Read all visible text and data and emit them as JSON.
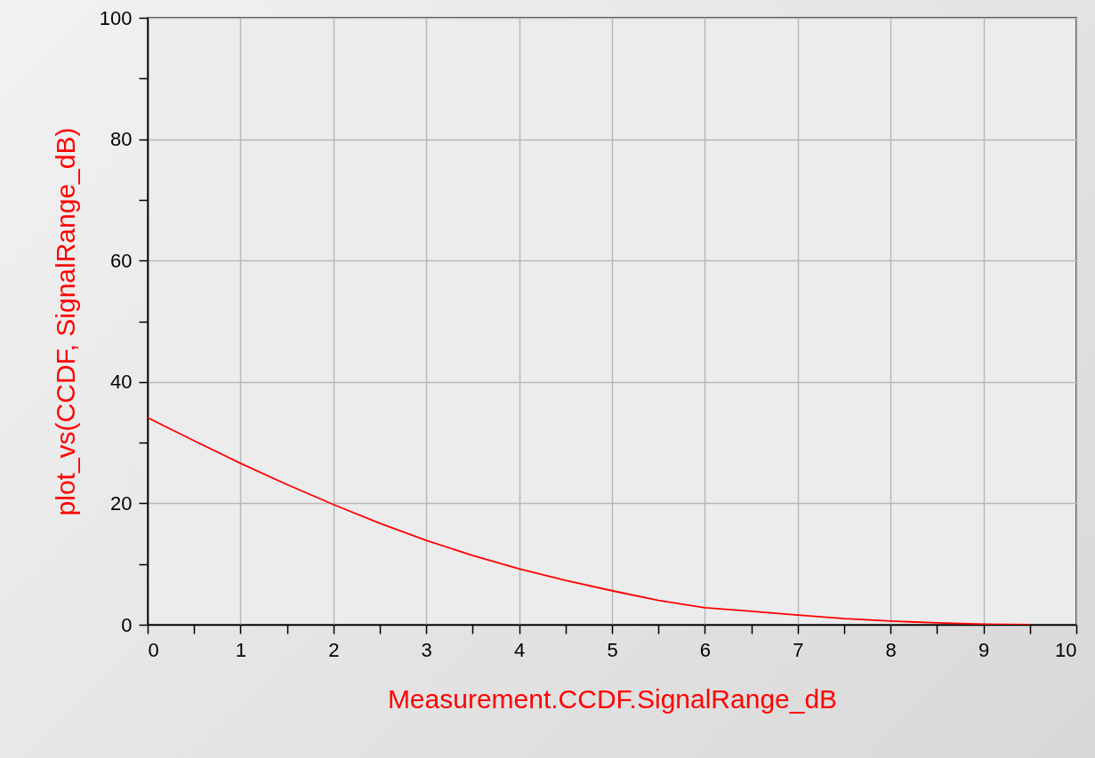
{
  "chart_data": {
    "type": "line",
    "xlabel": "Measurement.CCDF.SignalRange_dB",
    "ylabel": "plot_vs(CCDF, SignalRange_dB)",
    "x": [
      0,
      0.5,
      1,
      1.5,
      2,
      2.5,
      3,
      3.5,
      4,
      4.5,
      5,
      5.5,
      6,
      6.5,
      7,
      7.5,
      8,
      8.5,
      9,
      9.5
    ],
    "series": [
      {
        "color": "#ff0000",
        "values": [
          34.1,
          30.3,
          26.6,
          23.1,
          19.8,
          16.7,
          13.9,
          11.4,
          9.2,
          7.3,
          5.6,
          4.0,
          2.8,
          2.2,
          1.6,
          1.0,
          0.6,
          0.3,
          0.1,
          0
        ]
      }
    ],
    "xlim": [
      0,
      10
    ],
    "xticks": [
      0,
      {
        "value": 0.5,
        "label": null
      },
      1,
      {
        "value": 1.5,
        "label": null
      },
      2,
      {
        "value": 2.5,
        "label": null
      },
      3,
      {
        "value": 3.5,
        "label": null
      },
      4,
      {
        "value": 4.5,
        "label": null
      },
      5,
      {
        "value": 5.5,
        "label": null
      },
      6,
      {
        "value": 6.5,
        "label": null
      },
      7,
      {
        "value": 7.5,
        "label": null
      },
      8,
      {
        "value": 8.5,
        "label": null
      },
      9,
      {
        "value": 9.5,
        "label": null
      },
      10
    ],
    "ylim": [
      0,
      100
    ],
    "yticks": [
      0,
      {
        "value": 10,
        "label": null
      },
      20,
      {
        "value": 30,
        "label": null
      },
      40,
      {
        "value": 50,
        "label": null
      },
      60,
      {
        "value": 70,
        "label": null
      },
      80,
      {
        "value": 90,
        "label": null
      },
      100
    ],
    "grid": true,
    "marker": "none",
    "line_style": "solid"
  }
}
